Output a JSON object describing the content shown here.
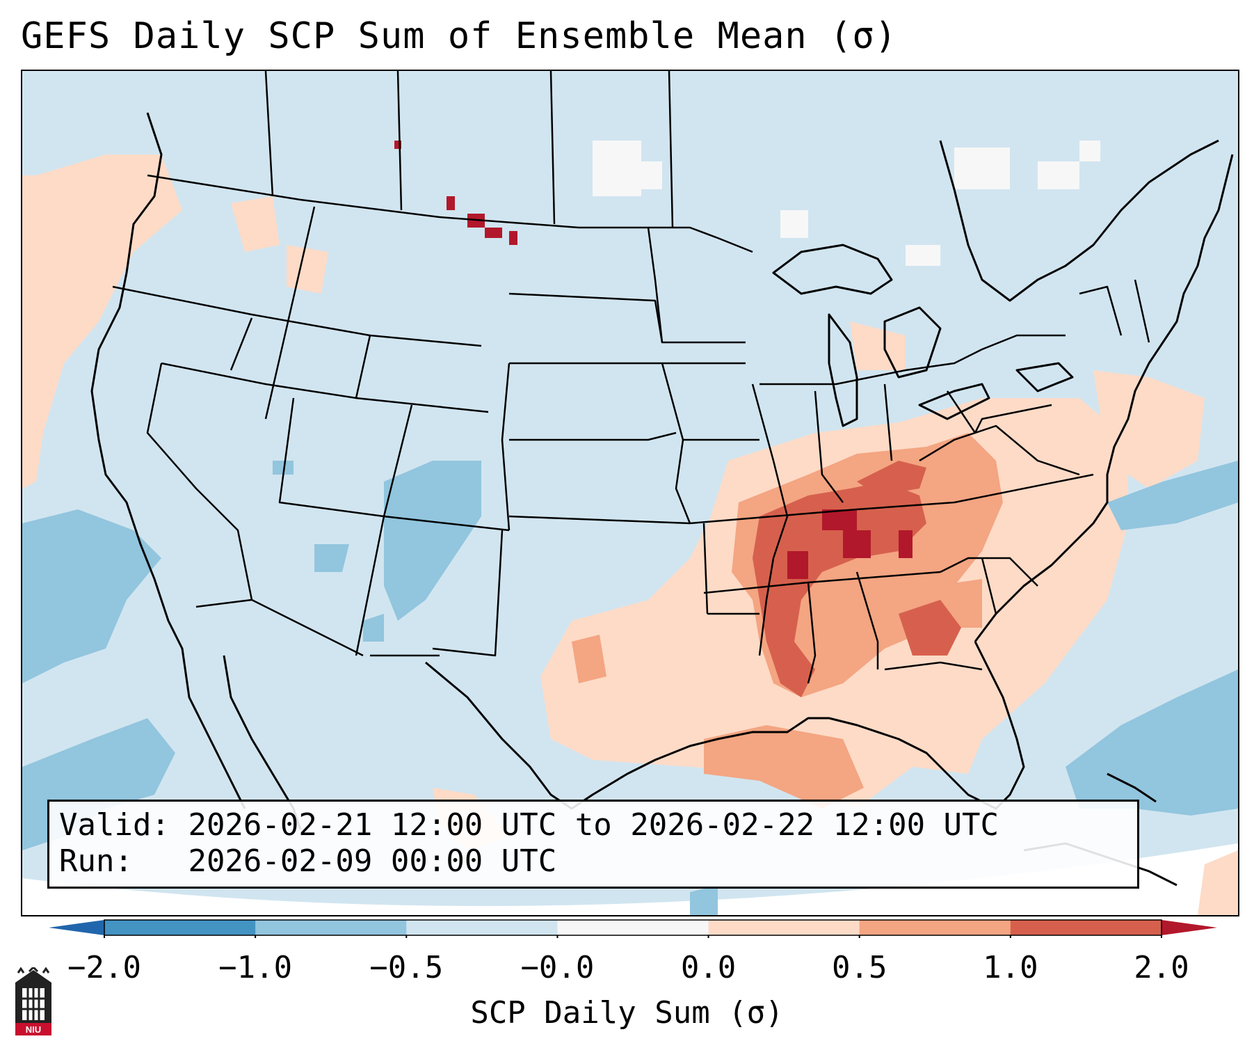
{
  "title": "GEFS Daily SCP Sum of Ensemble Mean (σ)",
  "info": {
    "valid_label": "Valid:",
    "valid_value": "2026-02-21 12:00 UTC to 2026-02-22 12:00 UTC",
    "run_label": "Run:",
    "run_value": "2026-02-09 00:00 UTC"
  },
  "colorbar": {
    "label": "SCP Daily Sum (σ)",
    "tick_labels": [
      "−2.0",
      "−1.0",
      "−0.5",
      "−0.0",
      "0.0",
      "0.5",
      "1.0",
      "2.0"
    ],
    "bins": [
      {
        "range": "< -2.0",
        "color": "#2166ac"
      },
      {
        "range": "-2.0 to -1.0",
        "color": "#4393c3"
      },
      {
        "range": "-1.0 to -0.5",
        "color": "#92c5de"
      },
      {
        "range": "-0.5 to -0.0",
        "color": "#d1e5f0"
      },
      {
        "range": "-0.0 to 0.0",
        "color": "#f7f7f7"
      },
      {
        "range": "0.0 to 0.5",
        "color": "#fddbc7"
      },
      {
        "range": "0.5 to 1.0",
        "color": "#f4a582"
      },
      {
        "range": "1.0 to 2.0",
        "color": "#d6604d"
      },
      {
        "range": "> 2.0",
        "color": "#b2182b"
      }
    ]
  },
  "logo": {
    "text": "NIU",
    "name": "niu-logo"
  },
  "map_regions": {
    "projection": "Lambert conformal, CONUS",
    "high_anomaly_region": "Tennessee and Ohio Valleys, Lower Mississippi Valley, Southeast",
    "negative_anomaly_areas": "Colorado, eastern Pacific, western Atlantic"
  }
}
